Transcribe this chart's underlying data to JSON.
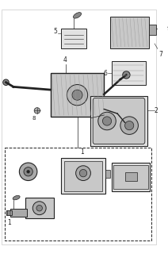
{
  "bg_color": "#ffffff",
  "line_color": "#222222",
  "gray_fill": "#c8c8c8",
  "light_gray": "#e2e2e2",
  "mid_gray": "#aaaaaa",
  "dark_gray": "#888888",
  "fig_width": 2.12,
  "fig_height": 3.2,
  "dpi": 100
}
